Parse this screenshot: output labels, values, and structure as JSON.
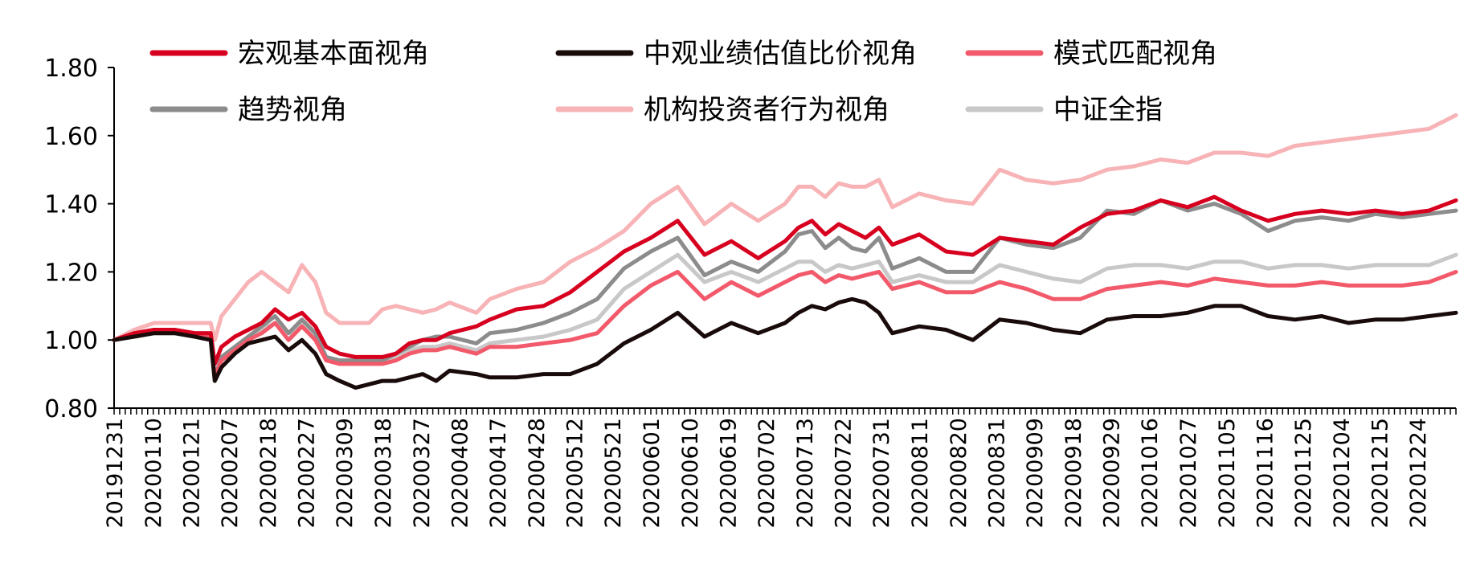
{
  "chart_data": {
    "type": "line",
    "title": "",
    "xlabel": "",
    "ylabel": "",
    "ylim": [
      0.8,
      1.8
    ],
    "yticks": [
      0.8,
      1.0,
      1.2,
      1.4,
      1.6,
      1.8
    ],
    "ytick_labels": [
      "0.80",
      "1.00",
      "1.20",
      "1.40",
      "1.60",
      "1.80"
    ],
    "legend_position": "top",
    "grid": false,
    "x_tick_labels": [
      "20191231",
      "20200110",
      "20200121",
      "20200207",
      "20200218",
      "20200227",
      "20200309",
      "20200318",
      "20200327",
      "20200408",
      "20200417",
      "20200428",
      "20200512",
      "20200521",
      "20200601",
      "20200610",
      "20200619",
      "20200702",
      "20200713",
      "20200722",
      "20200731",
      "20200811",
      "20200820",
      "20200831",
      "20200909",
      "20200918",
      "20200929",
      "20201016",
      "20201027",
      "20201105",
      "20201116",
      "20201125",
      "20201204",
      "20201215",
      "20201224"
    ],
    "x_range": [
      0,
      1
    ],
    "x_tick_positions": [
      0.0,
      0.0286,
      0.0571,
      0.0857,
      0.1143,
      0.1429,
      0.1714,
      0.2,
      0.2286,
      0.2571,
      0.2857,
      0.3143,
      0.3429,
      0.3714,
      0.4,
      0.4286,
      0.4571,
      0.4857,
      0.5143,
      0.5429,
      0.5714,
      0.6,
      0.6286,
      0.6571,
      0.6857,
      0.7143,
      0.7429,
      0.7714,
      0.8,
      0.8286,
      0.8571,
      0.8857,
      0.9143,
      0.9429,
      0.9714
    ],
    "x_grid": [
      0.0,
      0.015,
      0.03,
      0.045,
      0.06,
      0.072,
      0.075,
      0.08,
      0.09,
      0.1,
      0.11,
      0.12,
      0.13,
      0.14,
      0.15,
      0.158,
      0.168,
      0.18,
      0.19,
      0.2,
      0.21,
      0.22,
      0.23,
      0.24,
      0.25,
      0.27,
      0.28,
      0.3,
      0.32,
      0.34,
      0.36,
      0.38,
      0.4,
      0.42,
      0.44,
      0.46,
      0.48,
      0.5,
      0.51,
      0.52,
      0.53,
      0.54,
      0.55,
      0.56,
      0.57,
      0.58,
      0.6,
      0.62,
      0.64,
      0.66,
      0.68,
      0.7,
      0.72,
      0.74,
      0.76,
      0.78,
      0.8,
      0.82,
      0.84,
      0.86,
      0.88,
      0.9,
      0.92,
      0.94,
      0.96,
      0.98,
      1.0
    ],
    "series": [
      {
        "name": "宏观基本面视角",
        "color": "#d7001f",
        "values": [
          1.0,
          1.02,
          1.03,
          1.03,
          1.02,
          1.02,
          0.93,
          0.98,
          1.01,
          1.03,
          1.05,
          1.09,
          1.06,
          1.08,
          1.04,
          0.98,
          0.96,
          0.95,
          0.95,
          0.95,
          0.96,
          0.99,
          1.0,
          1.0,
          1.02,
          1.04,
          1.06,
          1.09,
          1.1,
          1.14,
          1.2,
          1.26,
          1.3,
          1.35,
          1.25,
          1.29,
          1.24,
          1.29,
          1.33,
          1.35,
          1.31,
          1.34,
          1.32,
          1.3,
          1.33,
          1.28,
          1.31,
          1.26,
          1.25,
          1.3,
          1.29,
          1.28,
          1.33,
          1.37,
          1.38,
          1.41,
          1.39,
          1.42,
          1.38,
          1.35,
          1.37,
          1.38,
          1.37,
          1.38,
          1.37,
          1.38,
          1.41
        ]
      },
      {
        "name": "中观业绩估值比价视角",
        "color": "#1a0b0b",
        "values": [
          1.0,
          1.01,
          1.02,
          1.02,
          1.01,
          1.0,
          0.88,
          0.92,
          0.96,
          0.99,
          1.0,
          1.01,
          0.97,
          1.0,
          0.96,
          0.9,
          0.88,
          0.86,
          0.87,
          0.88,
          0.88,
          0.89,
          0.9,
          0.88,
          0.91,
          0.9,
          0.89,
          0.89,
          0.9,
          0.9,
          0.93,
          0.99,
          1.03,
          1.08,
          1.01,
          1.05,
          1.02,
          1.05,
          1.08,
          1.1,
          1.09,
          1.11,
          1.12,
          1.11,
          1.08,
          1.02,
          1.04,
          1.03,
          1.0,
          1.06,
          1.05,
          1.03,
          1.02,
          1.06,
          1.07,
          1.07,
          1.08,
          1.1,
          1.1,
          1.07,
          1.06,
          1.07,
          1.05,
          1.06,
          1.06,
          1.07,
          1.08
        ]
      },
      {
        "name": "模式匹配视角",
        "color": "#f2596a",
        "values": [
          1.0,
          1.02,
          1.03,
          1.03,
          1.02,
          1.01,
          0.89,
          0.94,
          0.97,
          1.0,
          1.02,
          1.05,
          1.0,
          1.04,
          1.0,
          0.94,
          0.93,
          0.93,
          0.93,
          0.93,
          0.94,
          0.96,
          0.97,
          0.97,
          0.98,
          0.96,
          0.98,
          0.98,
          0.99,
          1.0,
          1.02,
          1.1,
          1.16,
          1.2,
          1.12,
          1.17,
          1.13,
          1.17,
          1.19,
          1.2,
          1.17,
          1.19,
          1.18,
          1.19,
          1.2,
          1.15,
          1.17,
          1.14,
          1.14,
          1.17,
          1.15,
          1.12,
          1.12,
          1.15,
          1.16,
          1.17,
          1.16,
          1.18,
          1.17,
          1.16,
          1.16,
          1.17,
          1.16,
          1.16,
          1.16,
          1.17,
          1.2
        ]
      },
      {
        "name": "趋势视角",
        "color": "#8c8c8c",
        "values": [
          1.0,
          1.02,
          1.03,
          1.03,
          1.02,
          1.02,
          0.89,
          0.95,
          0.98,
          1.01,
          1.04,
          1.07,
          1.02,
          1.06,
          1.02,
          0.95,
          0.94,
          0.94,
          0.94,
          0.94,
          0.96,
          0.98,
          1.0,
          1.01,
          1.01,
          0.99,
          1.02,
          1.03,
          1.05,
          1.08,
          1.12,
          1.21,
          1.26,
          1.3,
          1.19,
          1.23,
          1.2,
          1.26,
          1.31,
          1.32,
          1.27,
          1.3,
          1.27,
          1.26,
          1.3,
          1.21,
          1.24,
          1.2,
          1.2,
          1.3,
          1.28,
          1.27,
          1.3,
          1.38,
          1.37,
          1.41,
          1.38,
          1.4,
          1.37,
          1.32,
          1.35,
          1.36,
          1.35,
          1.37,
          1.36,
          1.37,
          1.38
        ]
      },
      {
        "name": "机构投资者行为视角",
        "color": "#f7b3b6",
        "values": [
          1.0,
          1.03,
          1.05,
          1.05,
          1.05,
          1.05,
          1.0,
          1.07,
          1.12,
          1.17,
          1.2,
          1.17,
          1.14,
          1.22,
          1.17,
          1.08,
          1.05,
          1.05,
          1.05,
          1.09,
          1.1,
          1.09,
          1.08,
          1.09,
          1.11,
          1.08,
          1.12,
          1.15,
          1.17,
          1.23,
          1.27,
          1.32,
          1.4,
          1.45,
          1.34,
          1.4,
          1.35,
          1.4,
          1.45,
          1.45,
          1.42,
          1.46,
          1.45,
          1.45,
          1.47,
          1.39,
          1.43,
          1.41,
          1.4,
          1.5,
          1.47,
          1.46,
          1.47,
          1.5,
          1.51,
          1.53,
          1.52,
          1.55,
          1.55,
          1.54,
          1.57,
          1.58,
          1.59,
          1.6,
          1.61,
          1.62,
          1.66
        ]
      },
      {
        "name": "中证全指",
        "color": "#c8c8c8",
        "values": [
          1.0,
          1.02,
          1.02,
          1.02,
          1.01,
          1.01,
          0.88,
          0.94,
          0.97,
          1.0,
          1.03,
          1.05,
          1.0,
          1.05,
          1.01,
          0.95,
          0.93,
          0.93,
          0.93,
          0.93,
          0.95,
          0.97,
          0.98,
          0.98,
          0.99,
          0.97,
          0.99,
          1.0,
          1.01,
          1.03,
          1.06,
          1.15,
          1.2,
          1.25,
          1.17,
          1.2,
          1.17,
          1.21,
          1.23,
          1.23,
          1.2,
          1.22,
          1.21,
          1.22,
          1.23,
          1.17,
          1.19,
          1.17,
          1.17,
          1.22,
          1.2,
          1.18,
          1.17,
          1.21,
          1.22,
          1.22,
          1.21,
          1.23,
          1.23,
          1.21,
          1.22,
          1.22,
          1.21,
          1.22,
          1.22,
          1.22,
          1.25
        ]
      }
    ]
  }
}
